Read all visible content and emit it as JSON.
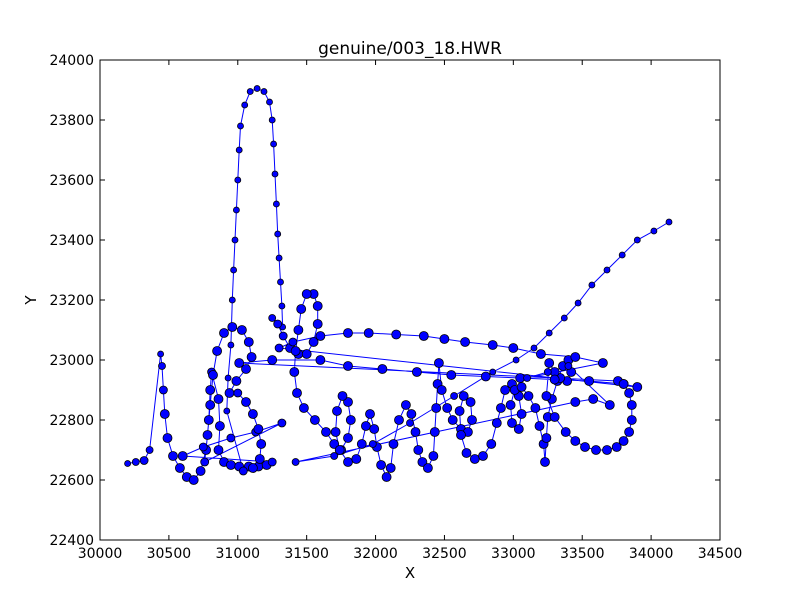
{
  "chart_data": {
    "type": "scatter",
    "title": "genuine/003_18.HWR",
    "xlabel": "X",
    "ylabel": "Y",
    "xlim": [
      30000,
      34500
    ],
    "ylim": [
      22400,
      24000
    ],
    "x_ticks": [
      "30000",
      "30500",
      "31000",
      "31500",
      "32000",
      "32500",
      "33000",
      "33500",
      "34000",
      "34500"
    ],
    "y_ticks": [
      "22400",
      "22600",
      "22800",
      "23000",
      "23200",
      "23400",
      "23600",
      "23800",
      "24000"
    ],
    "grid": false,
    "legend": "none",
    "colors": {
      "marker_fill": "#0000ff",
      "marker_edge": "#000000",
      "line": "#0000ff"
    },
    "series": [
      {
        "points": [
          [
            30200,
            22655,
            5
          ],
          [
            30260,
            22660,
            6
          ],
          [
            30320,
            22665,
            7
          ],
          [
            30360,
            22700,
            6
          ],
          [
            30440,
            23020,
            5
          ],
          [
            30450,
            22980,
            6
          ],
          [
            30460,
            22900,
            7
          ],
          [
            30470,
            22820,
            8
          ],
          [
            30490,
            22740,
            8
          ],
          [
            30530,
            22680,
            8
          ],
          [
            30580,
            22640,
            8
          ],
          [
            30630,
            22610,
            8
          ],
          [
            30680,
            22600,
            8
          ],
          [
            30730,
            22630,
            8
          ],
          [
            30770,
            22700,
            8
          ],
          [
            30790,
            22800,
            8
          ],
          [
            30800,
            22900,
            8
          ],
          [
            30810,
            22960,
            7
          ],
          [
            30860,
            22870,
            8
          ],
          [
            30870,
            22780,
            8
          ],
          [
            30860,
            22700,
            8
          ],
          [
            30900,
            22660,
            8
          ],
          [
            30950,
            22650,
            8
          ],
          [
            31010,
            22645,
            8
          ],
          [
            31080,
            22645,
            8
          ],
          [
            31150,
            22645,
            8
          ],
          [
            31210,
            22650,
            8
          ],
          [
            31250,
            22660,
            7
          ],
          [
            30600,
            22680,
            8
          ],
          [
            30750,
            22710,
            7
          ],
          [
            30950,
            22740,
            7
          ],
          [
            31130,
            22760,
            7
          ],
          [
            31320,
            22790,
            7
          ],
          [
            30760,
            22660,
            7
          ],
          [
            30780,
            22750,
            8
          ],
          [
            30800,
            22850,
            8
          ],
          [
            30820,
            22950,
            8
          ],
          [
            30850,
            23030,
            8
          ],
          [
            30900,
            23090,
            8
          ],
          [
            30960,
            23110,
            8
          ],
          [
            31030,
            23100,
            8
          ],
          [
            31080,
            23060,
            8
          ],
          [
            31100,
            23010,
            8
          ],
          [
            31060,
            22970,
            8
          ],
          [
            30990,
            22930,
            8
          ],
          [
            30940,
            22890,
            8
          ],
          [
            31000,
            22890,
            7
          ],
          [
            31060,
            22860,
            8
          ],
          [
            31110,
            22820,
            8
          ],
          [
            31150,
            22770,
            8
          ],
          [
            31170,
            22720,
            8
          ],
          [
            31160,
            22670,
            8
          ],
          [
            31110,
            22640,
            8
          ],
          [
            31040,
            22630,
            7
          ],
          [
            30920,
            22830,
            5
          ],
          [
            30930,
            22940,
            5
          ],
          [
            30950,
            23050,
            5
          ],
          [
            30960,
            23200,
            5
          ],
          [
            30970,
            23300,
            5
          ],
          [
            30980,
            23400,
            5
          ],
          [
            30990,
            23500,
            5
          ],
          [
            31000,
            23600,
            5
          ],
          [
            31010,
            23700,
            5
          ],
          [
            31020,
            23780,
            5
          ],
          [
            31050,
            23850,
            5
          ],
          [
            31090,
            23895,
            5
          ],
          [
            31140,
            23905,
            5
          ],
          [
            31190,
            23895,
            5
          ],
          [
            31230,
            23860,
            5
          ],
          [
            31250,
            23800,
            5
          ],
          [
            31260,
            23720,
            5
          ],
          [
            31270,
            23620,
            5
          ],
          [
            31280,
            23520,
            5
          ],
          [
            31290,
            23420,
            5
          ],
          [
            31300,
            23340,
            5
          ],
          [
            31310,
            23260,
            5
          ],
          [
            31320,
            23180,
            5
          ],
          [
            31325,
            23110,
            5
          ],
          [
            31250,
            23140,
            6
          ],
          [
            31290,
            23120,
            7
          ],
          [
            31330,
            23080,
            7
          ],
          [
            31380,
            23040,
            8
          ],
          [
            31440,
            23020,
            8
          ],
          [
            31500,
            23020,
            8
          ],
          [
            31550,
            23060,
            8
          ],
          [
            31580,
            23120,
            8
          ],
          [
            31580,
            23180,
            8
          ],
          [
            31550,
            23220,
            8
          ],
          [
            31500,
            23220,
            8
          ],
          [
            31460,
            23170,
            8
          ],
          [
            31440,
            23100,
            8
          ],
          [
            31420,
            23030,
            8
          ],
          [
            31410,
            22960,
            8
          ],
          [
            31430,
            22890,
            8
          ],
          [
            31480,
            22840,
            8
          ],
          [
            31560,
            22800,
            8
          ],
          [
            31640,
            22760,
            8
          ],
          [
            31700,
            22720,
            8
          ],
          [
            31750,
            22700,
            8
          ],
          [
            31800,
            22740,
            8
          ],
          [
            31820,
            22800,
            8
          ],
          [
            31800,
            22860,
            8
          ],
          [
            31760,
            22880,
            8
          ],
          [
            31720,
            22830,
            8
          ],
          [
            31710,
            22760,
            8
          ],
          [
            31740,
            22700,
            8
          ],
          [
            31800,
            22660,
            8
          ],
          [
            31860,
            22670,
            8
          ],
          [
            31900,
            22720,
            8
          ],
          [
            31930,
            22780,
            8
          ],
          [
            31960,
            22820,
            8
          ],
          [
            31990,
            22770,
            8
          ],
          [
            32010,
            22710,
            8
          ],
          [
            32040,
            22650,
            8
          ],
          [
            32080,
            22610,
            8
          ],
          [
            32110,
            22640,
            8
          ],
          [
            32130,
            22720,
            8
          ],
          [
            32170,
            22800,
            8
          ],
          [
            32220,
            22850,
            8
          ],
          [
            32260,
            22820,
            8
          ],
          [
            32290,
            22760,
            8
          ],
          [
            32310,
            22700,
            8
          ],
          [
            32340,
            22660,
            8
          ],
          [
            32380,
            22640,
            8
          ],
          [
            32420,
            22680,
            8
          ],
          [
            32430,
            22760,
            8
          ],
          [
            32440,
            22840,
            8
          ],
          [
            32450,
            22920,
            8
          ],
          [
            32460,
            22990,
            8
          ],
          [
            32480,
            22900,
            8
          ],
          [
            32520,
            22840,
            8
          ],
          [
            32560,
            22800,
            8
          ],
          [
            32620,
            22770,
            8
          ],
          [
            32670,
            22760,
            8
          ],
          [
            32700,
            22800,
            8
          ],
          [
            32690,
            22860,
            8
          ],
          [
            32640,
            22880,
            8
          ],
          [
            32610,
            22830,
            8
          ],
          [
            32620,
            22750,
            8
          ],
          [
            32660,
            22690,
            8
          ],
          [
            32720,
            22670,
            8
          ],
          [
            32780,
            22680,
            8
          ],
          [
            32840,
            22720,
            8
          ],
          [
            32880,
            22790,
            8
          ],
          [
            32910,
            22840,
            8
          ],
          [
            32940,
            22900,
            8
          ],
          [
            32990,
            22920,
            8
          ],
          [
            33040,
            22880,
            8
          ],
          [
            33060,
            22820,
            8
          ],
          [
            33040,
            22770,
            8
          ],
          [
            32990,
            22790,
            8
          ],
          [
            32980,
            22850,
            8
          ],
          [
            33010,
            22900,
            8
          ],
          [
            33060,
            22910,
            8
          ],
          [
            33110,
            22880,
            8
          ],
          [
            33160,
            22840,
            8
          ],
          [
            33190,
            22780,
            8
          ],
          [
            33220,
            22720,
            8
          ],
          [
            33230,
            22660,
            8
          ],
          [
            33240,
            22740,
            8
          ],
          [
            33250,
            22810,
            8
          ],
          [
            33280,
            22870,
            8
          ],
          [
            33320,
            22930,
            8
          ],
          [
            33360,
            22980,
            8
          ],
          [
            33400,
            23000,
            8
          ],
          [
            33420,
            22960,
            8
          ],
          [
            33390,
            22930,
            8
          ],
          [
            33340,
            22940,
            8
          ],
          [
            33300,
            22960,
            8
          ],
          [
            33260,
            22990,
            8
          ],
          [
            33240,
            22880,
            8
          ],
          [
            33300,
            22810,
            8
          ],
          [
            33380,
            22760,
            8
          ],
          [
            33450,
            22730,
            8
          ],
          [
            33520,
            22710,
            8
          ],
          [
            33600,
            22700,
            8
          ],
          [
            33680,
            22700,
            8
          ],
          [
            33750,
            22710,
            8
          ],
          [
            33800,
            22730,
            8
          ],
          [
            33840,
            22760,
            8
          ],
          [
            33860,
            22800,
            8
          ],
          [
            33860,
            22850,
            8
          ],
          [
            33840,
            22890,
            8
          ],
          [
            33800,
            22920,
            8
          ],
          [
            33760,
            22930,
            8
          ],
          [
            31010,
            22990,
            8
          ],
          [
            31250,
            23000,
            8
          ],
          [
            31600,
            23000,
            8
          ],
          [
            31800,
            22980,
            8
          ],
          [
            32050,
            22970,
            8
          ],
          [
            32300,
            22960,
            8
          ],
          [
            32550,
            22950,
            8
          ],
          [
            32800,
            22945,
            8
          ],
          [
            33050,
            22940,
            8
          ],
          [
            33300,
            22935,
            8
          ],
          [
            33550,
            22930,
            8
          ],
          [
            33800,
            22920,
            8
          ],
          [
            33900,
            22910,
            8
          ],
          [
            31300,
            23040,
            7
          ],
          [
            31400,
            23060,
            7
          ],
          [
            31600,
            23080,
            8
          ],
          [
            31800,
            23090,
            8
          ],
          [
            31950,
            23090,
            8
          ],
          [
            32150,
            23085,
            8
          ],
          [
            32350,
            23080,
            8
          ],
          [
            32500,
            23070,
            8
          ],
          [
            32650,
            23060,
            8
          ],
          [
            32850,
            23050,
            8
          ],
          [
            33000,
            23040,
            8
          ],
          [
            33200,
            23020,
            8
          ],
          [
            33450,
            23010,
            8
          ],
          [
            33650,
            22990,
            8
          ],
          [
            33100,
            22940,
            6
          ],
          [
            33250,
            22960,
            6
          ],
          [
            33400,
            22980,
            6
          ],
          [
            33700,
            22850,
            8
          ],
          [
            33580,
            22870,
            8
          ],
          [
            33450,
            22860,
            8
          ],
          [
            31420,
            22660,
            6
          ],
          [
            31700,
            22680,
            6
          ],
          [
            31980,
            22720,
            6
          ],
          [
            32250,
            22790,
            6
          ],
          [
            32570,
            22880,
            6
          ],
          [
            32850,
            22960,
            5
          ],
          [
            33020,
            23000,
            5
          ],
          [
            33150,
            23040,
            5
          ],
          [
            33260,
            23090,
            5
          ],
          [
            33370,
            23140,
            5
          ],
          [
            33470,
            23190,
            5
          ],
          [
            33570,
            23250,
            5
          ],
          [
            33680,
            23300,
            5
          ],
          [
            33790,
            23350,
            5
          ],
          [
            33900,
            23400,
            5
          ],
          [
            34020,
            23430,
            5
          ],
          [
            34130,
            23460,
            5
          ]
        ]
      }
    ]
  }
}
